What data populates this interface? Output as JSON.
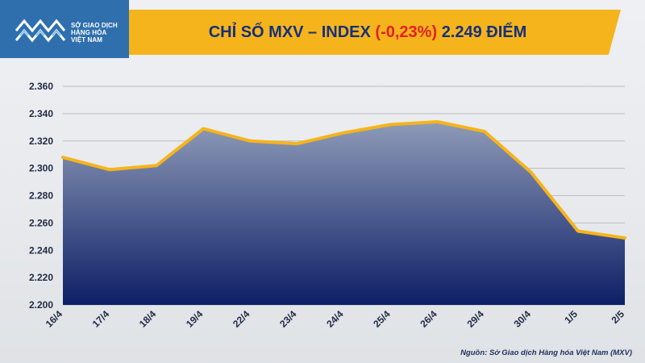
{
  "header": {
    "logo_icon": "exchange-logo-icon",
    "logo_lines": [
      "SỞ GIAO DỊCH",
      "HÀNG HÓA",
      "VIỆT NAM"
    ],
    "title_prefix": "CHỈ SỐ MXV – INDEX",
    "title_change": "(-0,23%)",
    "title_value": "2.249 ĐIỂM",
    "accent_color": "#f5b41c",
    "change_color": "#e51f25",
    "title_color": "#17307a"
  },
  "chart_data": {
    "type": "area",
    "categories": [
      "16/4",
      "17/4",
      "18/4",
      "19/4",
      "22/4",
      "23/4",
      "24/4",
      "25/4",
      "26/4",
      "29/4",
      "30/4",
      "1/5",
      "2/5"
    ],
    "values": [
      2308,
      2299,
      2302,
      2329,
      2320,
      2318,
      2326,
      2332,
      2334,
      2327,
      2297,
      2254,
      2249
    ],
    "ylim": [
      2200,
      2360
    ],
    "yticks": [
      2200,
      2220,
      2240,
      2260,
      2280,
      2300,
      2320,
      2340,
      2360
    ],
    "ytick_labels": [
      "2.200",
      "2.220",
      "2.240",
      "2.260",
      "2.280",
      "2.300",
      "2.320",
      "2.340",
      "2.360"
    ],
    "grid": true,
    "line_color": "#f5b41c",
    "fill_top_color": "#8e9bb8",
    "fill_bottom_color": "#0e1f66"
  },
  "footer": {
    "source": "Nguồn: Sở Giao dịch Hàng hóa Việt Nam (MXV)"
  }
}
